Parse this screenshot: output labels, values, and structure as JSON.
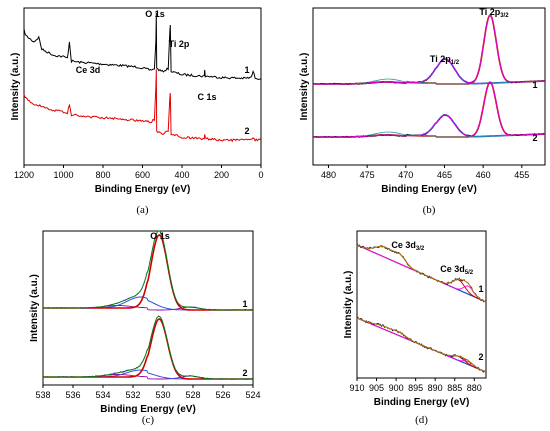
{
  "chart_data": [
    {
      "panel": "a",
      "type": "line",
      "caption": "(a)",
      "xlabel": "Binding Energy (eV)",
      "ylabel": "Intensity (a.u.)",
      "xlim": [
        1200,
        0
      ],
      "x_ticks": [
        "1200",
        "1000",
        "800",
        "600",
        "400",
        "200",
        "0"
      ],
      "annotations": [
        {
          "text": "O 1s",
          "x": 530
        },
        {
          "text": "Ti 2p",
          "x": 459
        },
        {
          "text": "Ce 3d",
          "x": 885
        },
        {
          "text": "C 1s",
          "x": 285
        }
      ],
      "series": [
        {
          "name": "1",
          "color": "#000000",
          "points": [
            [
              1200,
              0.88
            ],
            [
              1190,
              0.84
            ],
            [
              1150,
              0.8
            ],
            [
              1125,
              0.83
            ],
            [
              1110,
              0.75
            ],
            [
              1080,
              0.73
            ],
            [
              1050,
              0.71
            ],
            [
              1000,
              0.7
            ],
            [
              980,
              0.69
            ],
            [
              970,
              0.8
            ],
            [
              960,
              0.67
            ],
            [
              900,
              0.66
            ],
            [
              880,
              0.66
            ],
            [
              800,
              0.65
            ],
            [
              700,
              0.64
            ],
            [
              620,
              0.63
            ],
            [
              560,
              0.61
            ],
            [
              540,
              0.62
            ],
            [
              532,
              0.8
            ],
            [
              530,
              1.0
            ],
            [
              528,
              0.62
            ],
            [
              500,
              0.6
            ],
            [
              470,
              0.62
            ],
            [
              462,
              0.86
            ],
            [
              459,
              0.92
            ],
            [
              455,
              0.6
            ],
            [
              400,
              0.58
            ],
            [
              300,
              0.57
            ],
            [
              287,
              0.57
            ],
            [
              285,
              0.61
            ],
            [
              282,
              0.57
            ],
            [
              200,
              0.56
            ],
            [
              80,
              0.555
            ],
            [
              50,
              0.56
            ],
            [
              40,
              0.6
            ],
            [
              30,
              0.56
            ],
            [
              0,
              0.55
            ]
          ]
        },
        {
          "name": "2",
          "color": "#e00000",
          "points": [
            [
              1200,
              0.44
            ],
            [
              1190,
              0.42
            ],
            [
              1150,
              0.38
            ],
            [
              1120,
              0.37
            ],
            [
              1100,
              0.36
            ],
            [
              1050,
              0.34
            ],
            [
              1000,
              0.33
            ],
            [
              980,
              0.32
            ],
            [
              970,
              0.38
            ],
            [
              960,
              0.31
            ],
            [
              900,
              0.3
            ],
            [
              800,
              0.29
            ],
            [
              700,
              0.28
            ],
            [
              600,
              0.27
            ],
            [
              560,
              0.26
            ],
            [
              540,
              0.28
            ],
            [
              532,
              0.5
            ],
            [
              530,
              0.62
            ],
            [
              528,
              0.2
            ],
            [
              500,
              0.18
            ],
            [
              470,
              0.2
            ],
            [
              462,
              0.42
            ],
            [
              459,
              0.46
            ],
            [
              455,
              0.18
            ],
            [
              400,
              0.16
            ],
            [
              300,
              0.15
            ],
            [
              287,
              0.15
            ],
            [
              285,
              0.18
            ],
            [
              282,
              0.15
            ],
            [
              200,
              0.14
            ],
            [
              50,
              0.14
            ],
            [
              40,
              0.16
            ],
            [
              30,
              0.14
            ],
            [
              0,
              0.14
            ]
          ]
        }
      ]
    },
    {
      "panel": "b",
      "type": "line",
      "caption": "(b)",
      "xlabel": "Binding Energy (eV)",
      "ylabel": "Intensity (a.u.)",
      "xlim": [
        482,
        452
      ],
      "x_ticks": [
        "480",
        "475",
        "470",
        "465",
        "460",
        "455"
      ],
      "annotations": [
        {
          "text": "Ti 2p",
          "sub": "1/2",
          "x": 465
        },
        {
          "text": "Ti 2p",
          "sub": "3/2",
          "x": 459
        }
      ],
      "series_labels": [
        "1",
        "2"
      ],
      "colors": {
        "raw": "#000000",
        "fit": "#ff00ff",
        "ti32": "#d00000",
        "ti12": "#1f3fd0",
        "background": "#7050c0",
        "minor": "#20a0a0"
      }
    },
    {
      "panel": "c",
      "type": "line",
      "caption": "(c)",
      "xlabel": "Binding Energy (eV)",
      "ylabel": "Intensity (a.u.)",
      "xlim": [
        538,
        524
      ],
      "x_ticks": [
        "538",
        "536",
        "534",
        "532",
        "530",
        "528",
        "526",
        "524"
      ],
      "annotations": [
        {
          "text": "O 1s",
          "x": 530.2
        }
      ],
      "series_labels": [
        "1",
        "2"
      ],
      "colors": {
        "raw": "#1a1aff",
        "fit": "#008000",
        "main": "#d00000",
        "oh": "#3050e0",
        "minor": "#a000a0"
      }
    },
    {
      "panel": "d",
      "type": "line",
      "caption": "(d)",
      "xlabel": "Binding Energy (eV)",
      "ylabel": "Intensity (a.u.)",
      "xlim": [
        910,
        877
      ],
      "x_ticks": [
        "910",
        "905",
        "900",
        "895",
        "890",
        "885",
        "880"
      ],
      "annotations": [
        {
          "text": "Ce 3d",
          "sub": "3/2",
          "x": 900
        },
        {
          "text": "Ce 3d",
          "sub": "5/2",
          "x": 883
        }
      ],
      "series_labels": [
        "1",
        "2"
      ],
      "colors": {
        "raw": "#000000",
        "fit": "#c08000",
        "background": "#20a0a0",
        "peak_a": "#1f3fd0",
        "peak_b": "#d00000",
        "peak_c": "#ff00ff"
      }
    }
  ]
}
